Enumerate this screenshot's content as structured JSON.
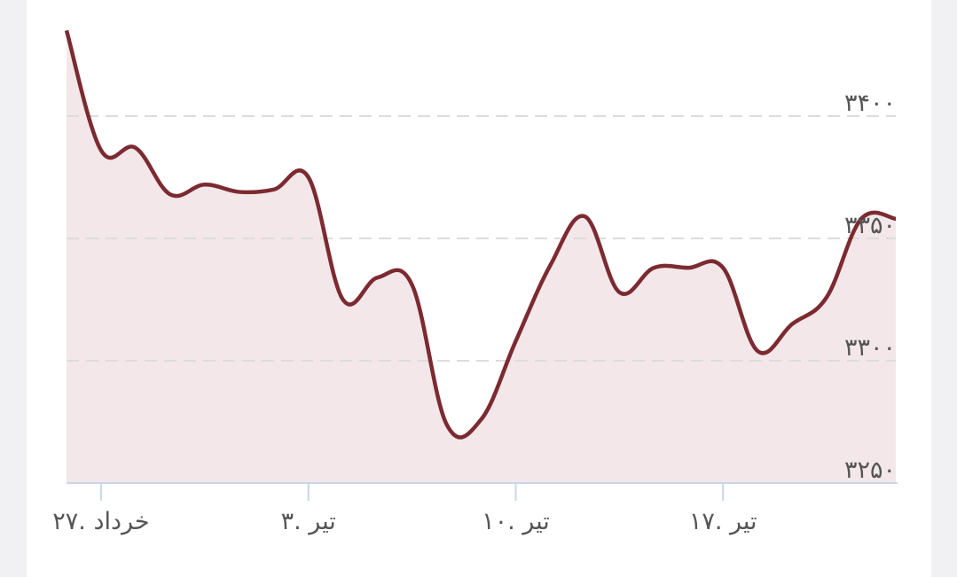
{
  "chart_data": {
    "type": "line",
    "categories": [
      null,
      "۲۷. خرداد",
      null,
      null,
      null,
      null,
      null,
      "۳. تیر",
      null,
      null,
      null,
      null,
      null,
      "۱۰. تیر",
      null,
      null,
      null,
      null,
      null,
      "۱۷. تیر",
      null,
      null,
      null,
      null,
      null
    ],
    "series": [
      {
        "color": "#7c2a31",
        "values": [
          3435,
          3386,
          3387,
          3368,
          3372,
          3369,
          3370,
          3375,
          3325,
          3334,
          3331,
          3274,
          3276,
          3308,
          3339,
          3359,
          3328,
          3338,
          3338,
          3338,
          3304,
          3315,
          3326,
          3358,
          3358
        ]
      }
    ],
    "area_color": "#f3e7e9",
    "ylim": [
      3250,
      3450
    ],
    "yticks": [
      {
        "value": 3250,
        "label": "۳۲۵۰"
      },
      {
        "value": 3300,
        "label": "۳۳۰۰"
      },
      {
        "value": 3350,
        "label": "۳۳۵۰"
      },
      {
        "value": 3400,
        "label": "۳۴۰۰"
      }
    ],
    "grid": true
  }
}
